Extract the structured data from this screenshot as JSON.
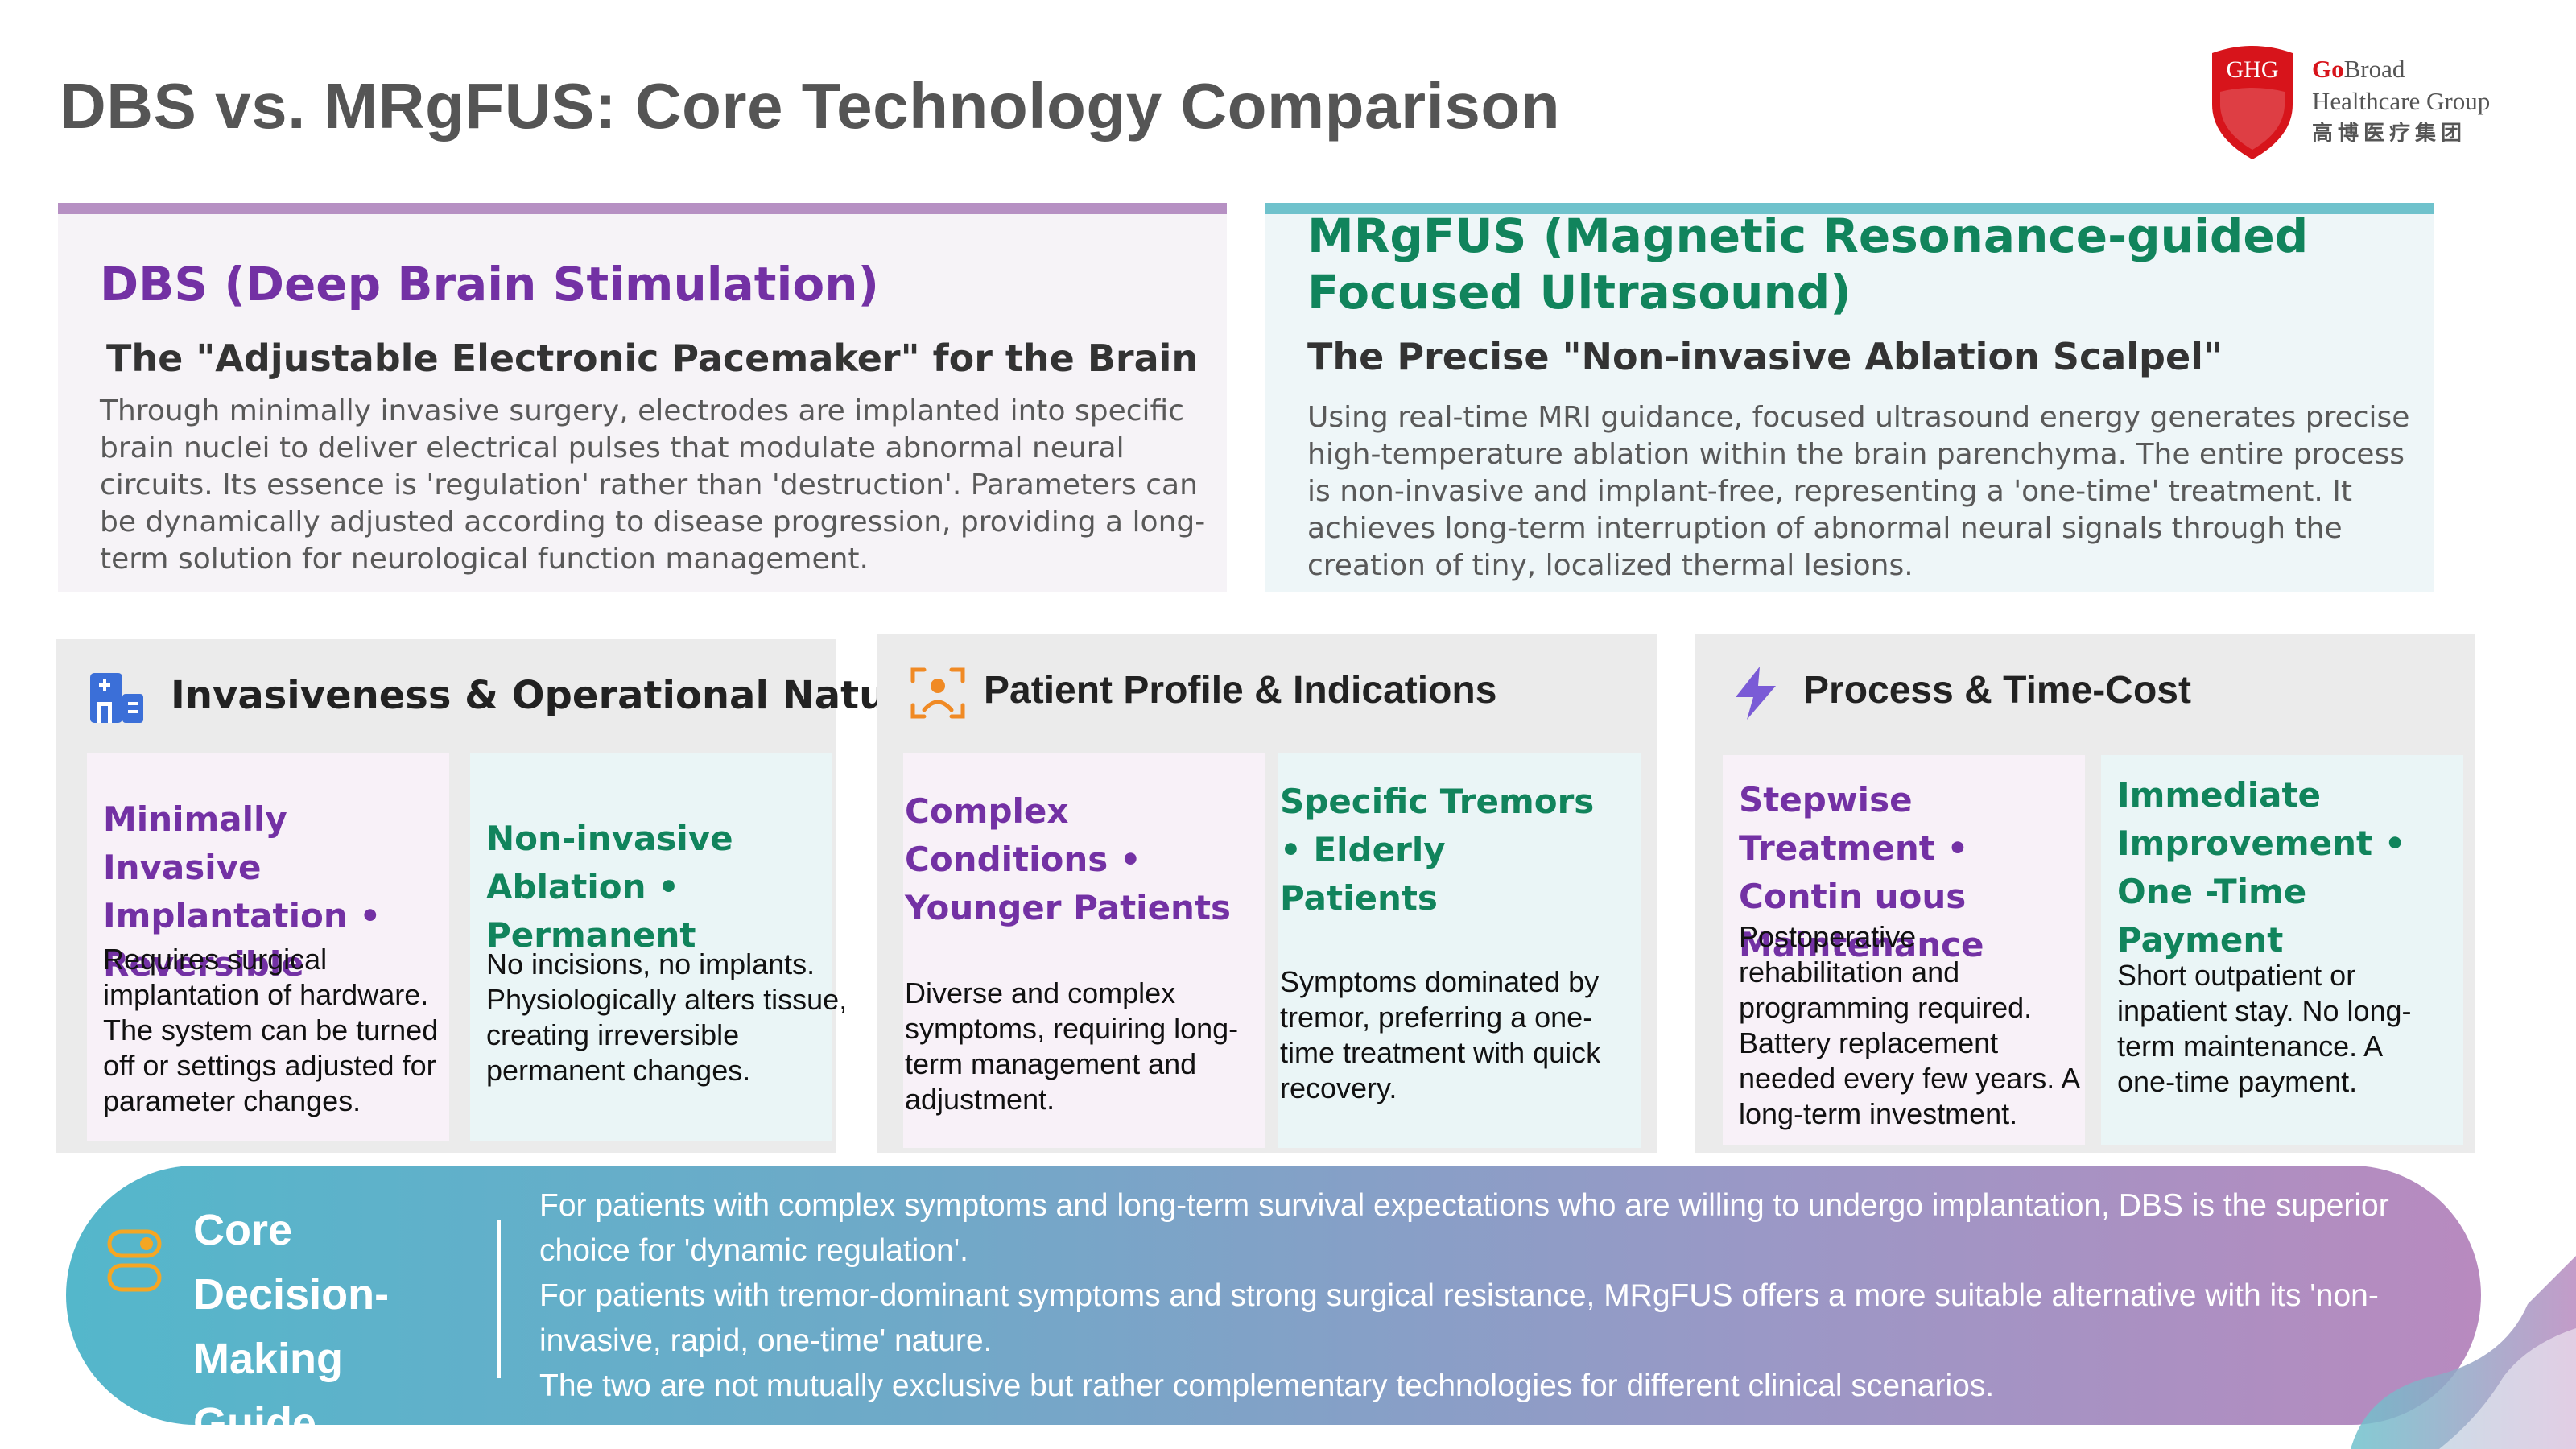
{
  "title": "DBS vs. MRgFUS: Core Technology Comparison",
  "logo": {
    "badge": "GHG",
    "brand_go": "Go",
    "brand_line1_rest": "Broad",
    "brand_line2": "Healthcare Group",
    "brand_cn": "高博医疗集团"
  },
  "dbs": {
    "title": "DBS (Deep Brain Stimulation)",
    "subtitle": "The \"Adjustable Electronic Pacemaker\" for the Brain",
    "description": "Through minimally invasive surgery, electrodes are implanted into specific brain nuclei to deliver electrical pulses that modulate abnormal neural circuits. Its essence is 'regulation' rather than 'destruction'. Parameters can be dynamically adjusted according to disease progression, providing a long-term solution for neurological function management."
  },
  "mrgfus": {
    "title": "MRgFUS (Magnetic Resonance-guided Focused Ultrasound)",
    "subtitle": "The Precise \"Non-invasive Ablation Scalpel\"",
    "description": "Using real-time MRI guidance, focused ultrasound energy generates precise high-temperature ablation within the brain parenchyma. The entire process is non-invasive and implant-free, representing a 'one-time' treatment. It achieves long-term interruption of abnormal neural signals through the creation of tiny, localized thermal lesions."
  },
  "categories": [
    {
      "title": "Invasiveness & Operational Nature",
      "icon": "hospital-icon",
      "left": {
        "heading": "Minimally Invasive Implantation • Reversible",
        "body": "Requires surgical implantation of hardware. The system can be turned off or settings adjusted for parameter changes."
      },
      "right": {
        "heading": "Non-invasive Ablation • Permanent",
        "body": "No incisions, no implants. Physiologically alters tissue, creating irreversible permanent changes."
      }
    },
    {
      "title": "Patient Profile & Indications",
      "icon": "user-focus-icon",
      "left": {
        "heading": "Complex Conditions • Younger Patients",
        "body": "Diverse and complex symptoms, requiring long-term management and adjustment."
      },
      "right": {
        "heading": "Specific Tremors • Elderly Patients",
        "body": "Symptoms dominated by tremor, preferring a one-time treatment with quick recovery."
      }
    },
    {
      "title": "Process & Time-Cost",
      "icon": "lightning-icon",
      "left": {
        "heading": "Stepwise Treatment • Contin uous Maintenance",
        "body": "Postoperative rehabilitation and programming required. Battery replacement needed every few years. A long-term investment."
      },
      "right": {
        "heading": "Immediate Improvement • One -Time Payment",
        "body": "Short outpatient or inpatient stay. No long-term maintenance. A one-time payment."
      }
    }
  ],
  "decision": {
    "label": "Core Decision-Making Guide",
    "lines": [
      "For patients with complex symptoms and long-term survival expectations who are willing to undergo implantation, DBS is the superior choice for 'dynamic regulation'.",
      "For patients with tremor-dominant symptoms and strong surgical resistance, MRgFUS offers a more suitable alternative with its 'non-invasive, rapid, one-time' nature.",
      "The two are not mutually exclusive but rather complementary technologies for different clinical scenarios."
    ]
  },
  "colors": {
    "dbs_accent": "#7331a4",
    "mrgfus_accent": "#11845c",
    "dbs_bar": "#b690c3",
    "mrgfus_bar": "#6fc2cc",
    "logo_red": "#d7141b"
  }
}
